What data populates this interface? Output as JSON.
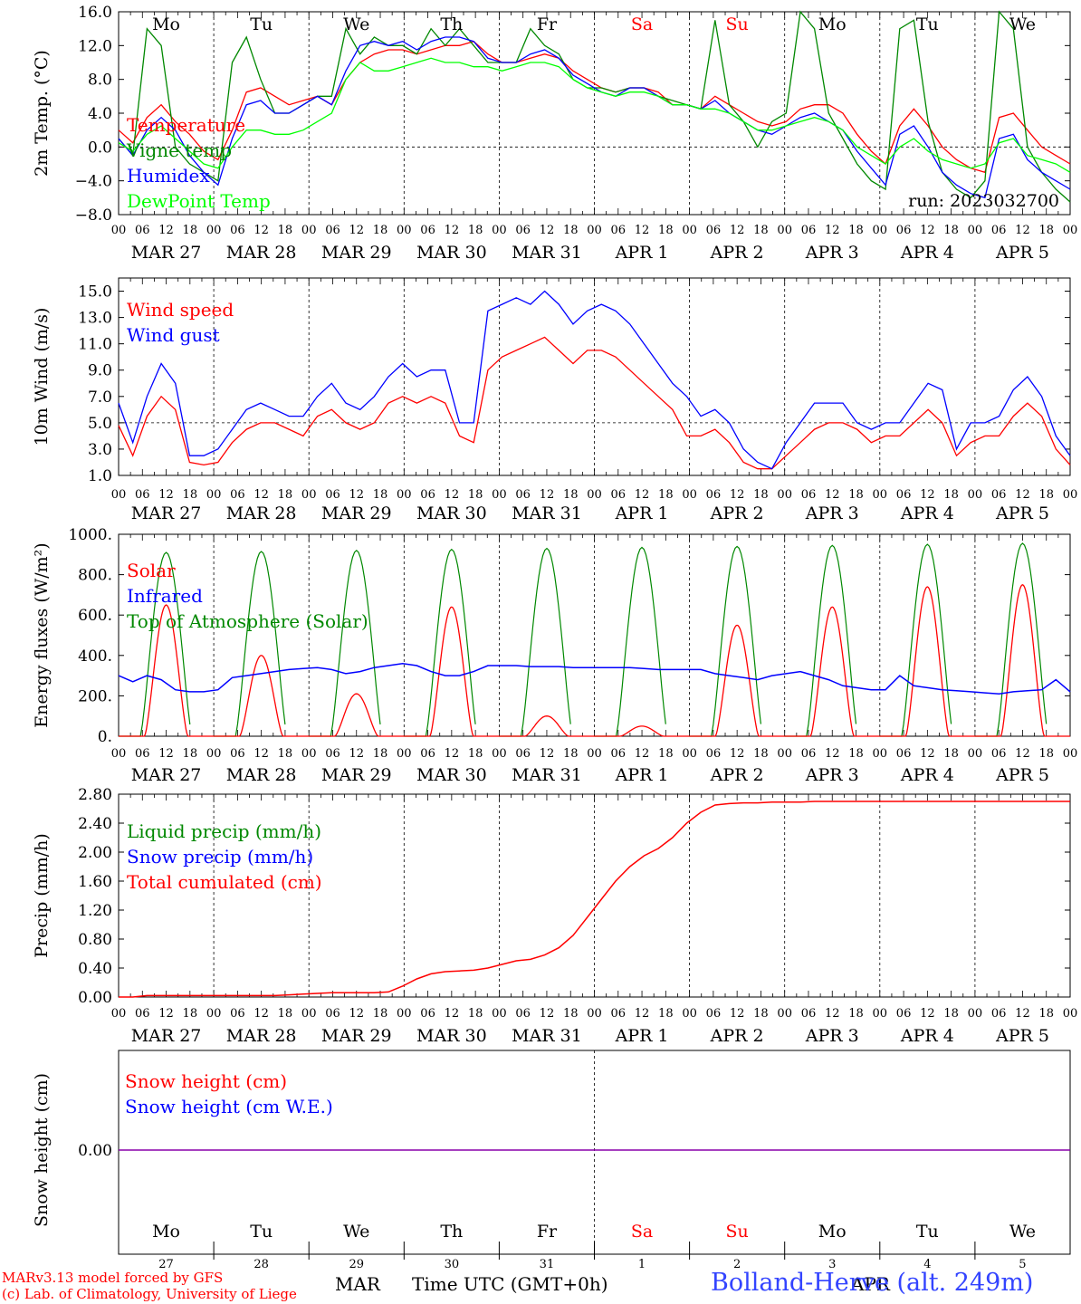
{
  "footer": {
    "credit1": "MARv3.13 model forced by GFS",
    "credit2": "(c) Lab. of Climatology, University of Liege",
    "month_label": "MAR",
    "month_label2": "APR",
    "time_label": "Time UTC (GMT+0h)",
    "station": "Bolland-Herve (alt. 249m)"
  },
  "colors": {
    "red": "#ff0000",
    "blue": "#0000ff",
    "green": "#00ff00",
    "darkgreen": "#008800",
    "purple": "#8800aa"
  },
  "chart_data": [
    {
      "type": "line",
      "ylabel": "2m Temp. (°C)",
      "ylim": [
        -8,
        16
      ],
      "yticks": [
        "16.0",
        "12.0",
        "8.0",
        "4.0",
        "0.0",
        "−4.0",
        "−8.0"
      ],
      "run_label": "run: 2023032700",
      "weekday_labels": [
        "Mo",
        "Tu",
        "We",
        "Th",
        "Fr",
        "Sa",
        "Su",
        "Mo",
        "Tu",
        "We"
      ],
      "weekday_colors": [
        "#000000",
        "#000000",
        "#000000",
        "#000000",
        "#000000",
        "#ff0000",
        "#ff0000",
        "#000000",
        "#000000",
        "#000000"
      ],
      "date_labels": [
        "MAR 27",
        "MAR 28",
        "MAR 29",
        "MAR 30",
        "MAR 31",
        "APR  1",
        "APR  2",
        "APR  3",
        "APR  4",
        "APR  5"
      ],
      "hour_labels": [
        "00",
        "06",
        "12",
        "18"
      ],
      "series": [
        {
          "name": "Temperature",
          "color": "#ff0000",
          "values": [
            2.0,
            0.5,
            3.5,
            5.0,
            3.0,
            1.5,
            -0.5,
            -1.5,
            2.0,
            6.5,
            7.0,
            6.0,
            5.0,
            5.5,
            6.0,
            5.0,
            8.0,
            10.0,
            11.0,
            11.5,
            11.5,
            11.0,
            11.5,
            12.0,
            12.0,
            12.5,
            11.0,
            10.0,
            10.0,
            10.5,
            11.0,
            10.5,
            9.0,
            8.0,
            7.0,
            6.5,
            7.0,
            7.0,
            6.5,
            5.0,
            5.0,
            4.5,
            6.0,
            5.0,
            4.0,
            3.0,
            2.5,
            3.0,
            4.5,
            5.0,
            5.0,
            4.0,
            1.5,
            -0.5,
            -2.0,
            2.5,
            4.5,
            2.5,
            0.0,
            -1.5,
            -2.5,
            -3.0,
            3.5,
            4.0,
            2.0,
            0.0,
            -1.0,
            -2.0
          ]
        },
        {
          "name": "Vigne temp",
          "color": "#008800",
          "values": [
            1.0,
            -1.0,
            14.0,
            12.0,
            0.0,
            -2.0,
            -3.0,
            -4.0,
            10.0,
            13.0,
            8.0,
            4.0,
            4.0,
            5.0,
            6.0,
            6.0,
            14.0,
            11.0,
            13.0,
            12.0,
            12.0,
            11.0,
            14.0,
            12.0,
            14.0,
            12.0,
            10.0,
            10.0,
            10.0,
            14.0,
            12.0,
            11.0,
            8.0,
            7.0,
            7.0,
            6.5,
            7.0,
            7.0,
            6.0,
            5.5,
            5.0,
            4.5,
            15.0,
            5.0,
            3.0,
            0.0,
            3.0,
            4.0,
            16.0,
            14.0,
            4.0,
            1.0,
            -2.0,
            -4.0,
            -5.0,
            14.0,
            15.0,
            3.0,
            -3.0,
            -5.0,
            -6.0,
            -4.0,
            16.0,
            14.0,
            0.0,
            -3.0,
            -5.0,
            -6.5
          ]
        },
        {
          "name": "Humidex",
          "color": "#0000ff",
          "values": [
            1.0,
            -1.0,
            2.0,
            3.5,
            2.0,
            -1.0,
            -3.0,
            -4.5,
            1.0,
            5.0,
            5.5,
            4.0,
            4.0,
            5.0,
            6.0,
            5.0,
            9.0,
            12.0,
            12.5,
            12.0,
            12.5,
            11.5,
            12.5,
            13.0,
            13.0,
            12.5,
            10.5,
            10.0,
            10.0,
            11.0,
            11.5,
            10.5,
            8.5,
            7.5,
            6.5,
            6.0,
            7.0,
            7.0,
            6.0,
            5.0,
            5.0,
            4.5,
            5.5,
            4.0,
            3.0,
            2.0,
            1.5,
            2.5,
            3.5,
            4.0,
            3.0,
            2.0,
            -0.5,
            -2.5,
            -4.5,
            1.5,
            2.5,
            0.0,
            -3.0,
            -4.5,
            -5.5,
            -6.0,
            1.0,
            1.5,
            -1.5,
            -3.0,
            -4.0,
            -5.0
          ]
        },
        {
          "name": "DewPoint Temp",
          "color": "#00ff00",
          "values": [
            0.5,
            -0.5,
            1.5,
            2.5,
            1.0,
            -0.5,
            -2.0,
            -2.5,
            0.0,
            2.0,
            2.0,
            1.5,
            1.5,
            2.0,
            3.0,
            4.0,
            8.0,
            10.0,
            9.0,
            9.0,
            9.5,
            10.0,
            10.5,
            10.0,
            10.0,
            9.5,
            9.5,
            9.0,
            9.5,
            10.0,
            10.0,
            9.5,
            8.0,
            7.0,
            6.5,
            6.0,
            6.5,
            6.5,
            6.0,
            5.0,
            5.0,
            4.5,
            4.5,
            4.0,
            3.0,
            2.0,
            2.0,
            2.5,
            3.0,
            3.5,
            3.0,
            2.0,
            0.0,
            -1.0,
            -2.0,
            0.0,
            1.0,
            -0.5,
            -1.5,
            -2.0,
            -2.5,
            -2.0,
            0.5,
            1.0,
            -1.0,
            -1.5,
            -2.0,
            -3.0
          ]
        }
      ]
    },
    {
      "type": "line",
      "ylabel": "10m Wind (m/s)",
      "ylim": [
        1,
        16
      ],
      "yticks": [
        "15.0",
        "13.0",
        "11.0",
        "9.0",
        "7.0",
        "5.0",
        "3.0",
        "1.0"
      ],
      "date_labels": [
        "MAR 27",
        "MAR 28",
        "MAR 29",
        "MAR 30",
        "MAR 31",
        "APR  1",
        "APR  2",
        "APR  3",
        "APR  4",
        "APR  5"
      ],
      "hour_labels": [
        "00",
        "06",
        "12",
        "18"
      ],
      "series": [
        {
          "name": "Wind speed",
          "color": "#ff0000",
          "values": [
            4.8,
            2.5,
            5.5,
            7.0,
            6.0,
            2.0,
            1.8,
            2.0,
            3.5,
            4.5,
            5.0,
            5.0,
            4.5,
            4.0,
            5.5,
            6.0,
            5.0,
            4.5,
            5.0,
            6.5,
            7.0,
            6.5,
            7.0,
            6.5,
            4.0,
            3.5,
            9.0,
            10.0,
            10.5,
            11.0,
            11.5,
            10.5,
            9.5,
            10.5,
            10.5,
            10.0,
            9.0,
            8.0,
            7.0,
            6.0,
            4.0,
            4.0,
            4.5,
            3.5,
            2.0,
            1.5,
            1.5,
            2.5,
            3.5,
            4.5,
            5.0,
            5.0,
            4.5,
            3.5,
            4.0,
            4.0,
            5.0,
            6.0,
            5.0,
            2.5,
            3.5,
            4.0,
            4.0,
            5.5,
            6.5,
            5.5,
            3.0,
            1.8
          ]
        },
        {
          "name": "Wind gust",
          "color": "#0000ff",
          "values": [
            6.5,
            3.5,
            7.0,
            9.5,
            8.0,
            2.5,
            2.5,
            3.0,
            4.5,
            6.0,
            6.5,
            6.0,
            5.5,
            5.5,
            7.0,
            8.0,
            6.5,
            6.0,
            7.0,
            8.5,
            9.5,
            8.5,
            9.0,
            9.0,
            5.0,
            5.0,
            13.5,
            14.0,
            14.5,
            14.0,
            15.0,
            14.0,
            12.5,
            13.5,
            14.0,
            13.5,
            12.5,
            11.0,
            9.5,
            8.0,
            7.0,
            5.5,
            6.0,
            5.0,
            3.0,
            2.0,
            1.5,
            3.5,
            5.0,
            6.5,
            6.5,
            6.5,
            5.0,
            4.5,
            5.0,
            5.0,
            6.5,
            8.0,
            7.5,
            3.0,
            5.0,
            5.0,
            5.5,
            7.5,
            8.5,
            7.0,
            4.0,
            2.5
          ]
        }
      ]
    },
    {
      "type": "line",
      "ylabel": "Energy fluxes (W/m²)",
      "ylim": [
        0,
        1000
      ],
      "yticks": [
        "1000.",
        "800.",
        "600.",
        "400.",
        "200.",
        "0."
      ],
      "date_labels": [
        "MAR 27",
        "MAR 28",
        "MAR 29",
        "MAR 30",
        "MAR 31",
        "APR  1",
        "APR  2",
        "APR  3",
        "APR  4",
        "APR  5"
      ],
      "hour_labels": [
        "00",
        "06",
        "12",
        "18"
      ],
      "toa_peaks": [
        910,
        915,
        920,
        925,
        930,
        935,
        940,
        945,
        950,
        955
      ],
      "solar_peaks": [
        650,
        400,
        210,
        640,
        100,
        50,
        550,
        640,
        740,
        750
      ],
      "series": [
        {
          "name": "Solar",
          "color": "#ff0000"
        },
        {
          "name": "Infrared",
          "color": "#0000ff",
          "values": [
            300,
            270,
            300,
            280,
            230,
            220,
            220,
            230,
            290,
            300,
            310,
            320,
            330,
            335,
            340,
            330,
            310,
            320,
            340,
            350,
            360,
            350,
            320,
            300,
            300,
            320,
            350,
            350,
            350,
            345,
            345,
            345,
            340,
            340,
            340,
            340,
            340,
            335,
            330,
            330,
            330,
            330,
            310,
            300,
            290,
            280,
            300,
            310,
            320,
            300,
            280,
            250,
            240,
            230,
            230,
            300,
            250,
            240,
            230,
            225,
            220,
            215,
            210,
            220,
            225,
            230,
            280,
            220
          ]
        },
        {
          "name": "Top of Atmosphere (Solar)",
          "color": "#008800"
        }
      ]
    },
    {
      "type": "line",
      "ylabel": "Precip (mm/h)",
      "ylim": [
        0,
        2.8
      ],
      "yticks": [
        "2.80",
        "2.40",
        "2.00",
        "1.60",
        "1.20",
        "0.80",
        "0.40",
        "0.00"
      ],
      "date_labels": [
        "MAR 27",
        "MAR 28",
        "MAR 29",
        "MAR 30",
        "MAR 31",
        "APR  1",
        "APR  2",
        "APR  3",
        "APR  4",
        "APR  5"
      ],
      "hour_labels": [
        "00",
        "06",
        "12",
        "18"
      ],
      "series": [
        {
          "name": "Liquid precip (mm/h)",
          "color": "#008800"
        },
        {
          "name": "Snow precip (mm/h)",
          "color": "#0000ff"
        },
        {
          "name": "Total cumulated (cm)",
          "color": "#ff0000",
          "values": [
            0.0,
            0.0,
            0.02,
            0.02,
            0.02,
            0.02,
            0.02,
            0.02,
            0.02,
            0.02,
            0.02,
            0.02,
            0.03,
            0.04,
            0.05,
            0.06,
            0.06,
            0.06,
            0.06,
            0.07,
            0.15,
            0.25,
            0.32,
            0.35,
            0.36,
            0.37,
            0.4,
            0.45,
            0.5,
            0.52,
            0.58,
            0.68,
            0.85,
            1.1,
            1.35,
            1.6,
            1.8,
            1.95,
            2.05,
            2.2,
            2.4,
            2.55,
            2.65,
            2.67,
            2.68,
            2.68,
            2.69,
            2.69,
            2.69,
            2.7,
            2.7,
            2.7,
            2.7,
            2.7,
            2.7,
            2.7,
            2.7,
            2.7,
            2.7,
            2.7,
            2.7,
            2.7,
            2.7,
            2.7,
            2.7,
            2.7,
            2.7,
            2.7
          ]
        }
      ]
    },
    {
      "type": "line",
      "ylabel": "Snow height (cm)",
      "yticks": [
        "0.00"
      ],
      "weekday_labels": [
        "Mo",
        "Tu",
        "We",
        "Th",
        "Fr",
        "Sa",
        "Su",
        "Mo",
        "Tu",
        "We"
      ],
      "weekday_colors": [
        "#000000",
        "#000000",
        "#000000",
        "#000000",
        "#000000",
        "#ff0000",
        "#ff0000",
        "#000000",
        "#000000",
        "#000000"
      ],
      "day_numbers": [
        "27",
        "28",
        "29",
        "30",
        "31",
        "1",
        "2",
        "3",
        "4",
        "5"
      ],
      "series": [
        {
          "name": "Snow height (cm)",
          "color": "#ff0000",
          "values": [
            0.0
          ]
        },
        {
          "name": "Snow height (cm W.E.)",
          "color": "#0000ff",
          "values": [
            0.0
          ]
        }
      ]
    }
  ]
}
